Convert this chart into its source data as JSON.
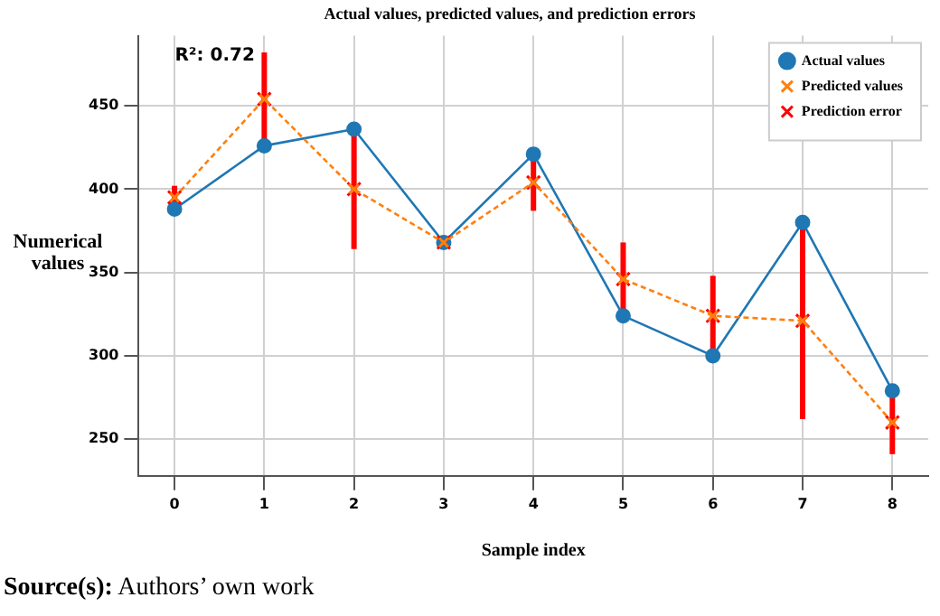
{
  "chart_data": {
    "type": "line",
    "title": "Actual values, predicted values, and prediction errors",
    "xlabel": "Sample index",
    "ylabel": "Numerical values",
    "x": [
      0,
      1,
      2,
      3,
      4,
      5,
      6,
      7,
      8
    ],
    "xlim": [
      -0.4,
      8.4
    ],
    "xticks": [
      0,
      1,
      2,
      3,
      4,
      5,
      6,
      7,
      8
    ],
    "ylim": [
      228,
      492
    ],
    "yticks": [
      250,
      300,
      350,
      400,
      450
    ],
    "grid": true,
    "legend": "top right",
    "series": [
      {
        "name": "Actual values",
        "type": "line",
        "color": "#1f77b4",
        "marker": "circle",
        "line_style": "solid",
        "values": [
          388,
          426,
          436,
          368,
          421,
          324,
          300,
          380,
          279
        ]
      },
      {
        "name": "Predicted values",
        "type": "line",
        "color": "#ff7f0e",
        "marker": "cross",
        "line_style": "dashed",
        "values": [
          395,
          454,
          400,
          368,
          404,
          346,
          324,
          321,
          260
        ]
      },
      {
        "name": "Prediction error",
        "type": "scatter",
        "color": "#ff0000",
        "marker": "cross",
        "values": [
          395,
          454,
          400,
          368,
          404,
          346,
          324,
          321,
          260
        ],
        "errors": [
          7,
          28,
          36,
          0,
          17,
          22,
          24,
          59,
          19
        ]
      }
    ],
    "annotations": [
      "R²: 0.72",
      "Source(s): Authors’ own work"
    ]
  }
}
